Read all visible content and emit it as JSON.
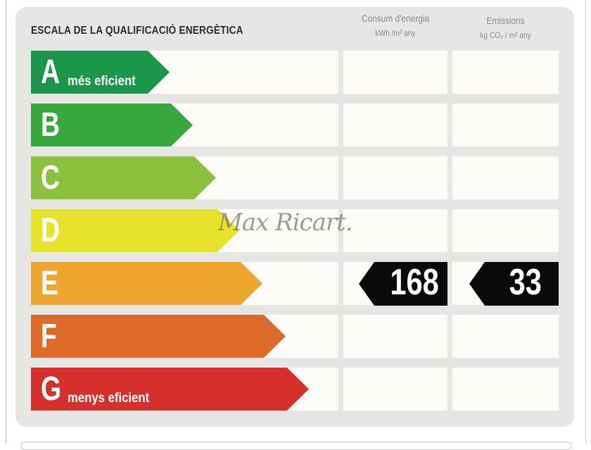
{
  "title": "ESCALA DE LA QUALIFICACIÓ ENERGÈTICA",
  "columns": [
    {
      "label": "Consum d'energia",
      "unit": "kWh /m² any"
    },
    {
      "label": "Emissions",
      "unit": "kg CO₂ / m² any"
    }
  ],
  "ratings": [
    {
      "letter": "A",
      "sub": "més eficient",
      "color": "#1a974a"
    },
    {
      "letter": "B",
      "sub": "",
      "color": "#36a83c"
    },
    {
      "letter": "C",
      "sub": "",
      "color": "#8cc13e"
    },
    {
      "letter": "D",
      "sub": "",
      "color": "#e7e22c"
    },
    {
      "letter": "E",
      "sub": "",
      "color": "#efa631"
    },
    {
      "letter": "F",
      "sub": "",
      "color": "#de6a29"
    },
    {
      "letter": "G",
      "sub": "menys eficient",
      "color": "#d6302c"
    }
  ],
  "result": {
    "rating": "E",
    "consumption": "168",
    "emissions": "33"
  },
  "watermark": "Max Ricart."
}
